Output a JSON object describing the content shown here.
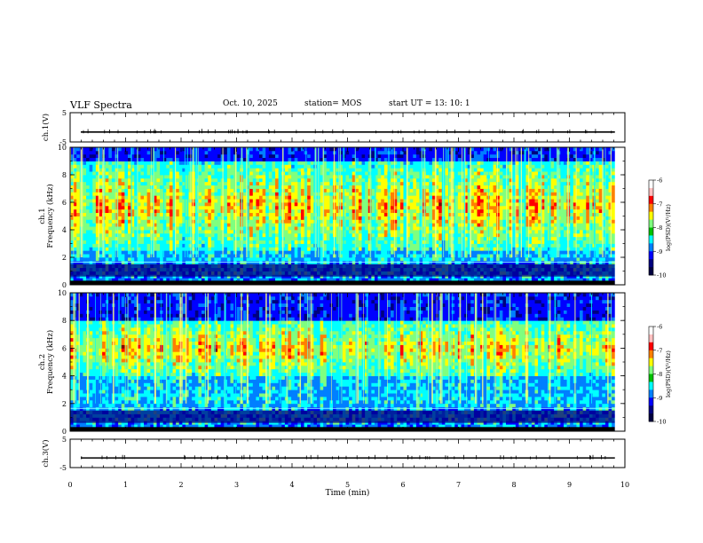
{
  "header": {
    "title": "VLF Spectra",
    "date": "Oct. 10, 2025",
    "station": "station= MOS",
    "start": "start  UT =   13: 10: 1"
  },
  "chart_data": [
    {
      "type": "line",
      "panel": "ch1-voltage",
      "ylabel": "ch.1(V)",
      "ylim": [
        -5,
        5
      ],
      "yticks": [
        "5",
        "-5"
      ],
      "series": [
        {
          "level": -1.6
        }
      ]
    },
    {
      "type": "heatmap",
      "panel": "ch1-spectrogram",
      "ylabel": "ch.1\nFrequency (kHz)",
      "ylim": [
        0,
        10
      ],
      "yticks": [
        "0",
        "2",
        "4",
        "6",
        "8",
        "10"
      ],
      "colorbar": {
        "label": "log(PSD)(V²/Hz)",
        "range": [
          -10,
          -6
        ],
        "ticks": [
          "-6",
          "-7",
          "-8",
          "-9",
          "-10"
        ]
      },
      "bands_khz": {
        "noise_floor_top": 1.8,
        "sferic_low": 2.0,
        "strong_band": [
          2.5,
          9.0
        ]
      }
    },
    {
      "type": "heatmap",
      "panel": "ch2-spectrogram",
      "ylabel": "ch.2\nFrequency (kHz)",
      "ylim": [
        0,
        10
      ],
      "yticks": [
        "0",
        "2",
        "4",
        "6",
        "8",
        "10"
      ],
      "colorbar": {
        "label": "log(PSD)(V²/Hz)",
        "range": [
          -10,
          -6
        ],
        "ticks": [
          "-6",
          "-7",
          "-8",
          "-9",
          "-10"
        ]
      },
      "bands_khz": {
        "noise_floor_top": 1.8,
        "sferic_low": 2.0,
        "strong_band": [
          4.0,
          8.0
        ]
      }
    },
    {
      "type": "line",
      "panel": "ch3-voltage",
      "ylabel": "ch.3(V)",
      "ylim": [
        -5,
        5
      ],
      "yticks": [
        "5",
        "-5"
      ],
      "series": [
        {
          "level": -1.6
        }
      ]
    }
  ],
  "x_axis": {
    "label": "Time (min)",
    "range": [
      0,
      10
    ],
    "ticks": [
      "0",
      "1",
      "2",
      "3",
      "4",
      "5",
      "6",
      "7",
      "8",
      "9",
      "10"
    ],
    "data_end": 9.82
  },
  "colors": {
    "jet": [
      "#00007f",
      "#0000ff",
      "#007fff",
      "#00ffff",
      "#7fff7f",
      "#ffff00",
      "#ff7f00",
      "#ff0000",
      "#7f0000"
    ]
  }
}
